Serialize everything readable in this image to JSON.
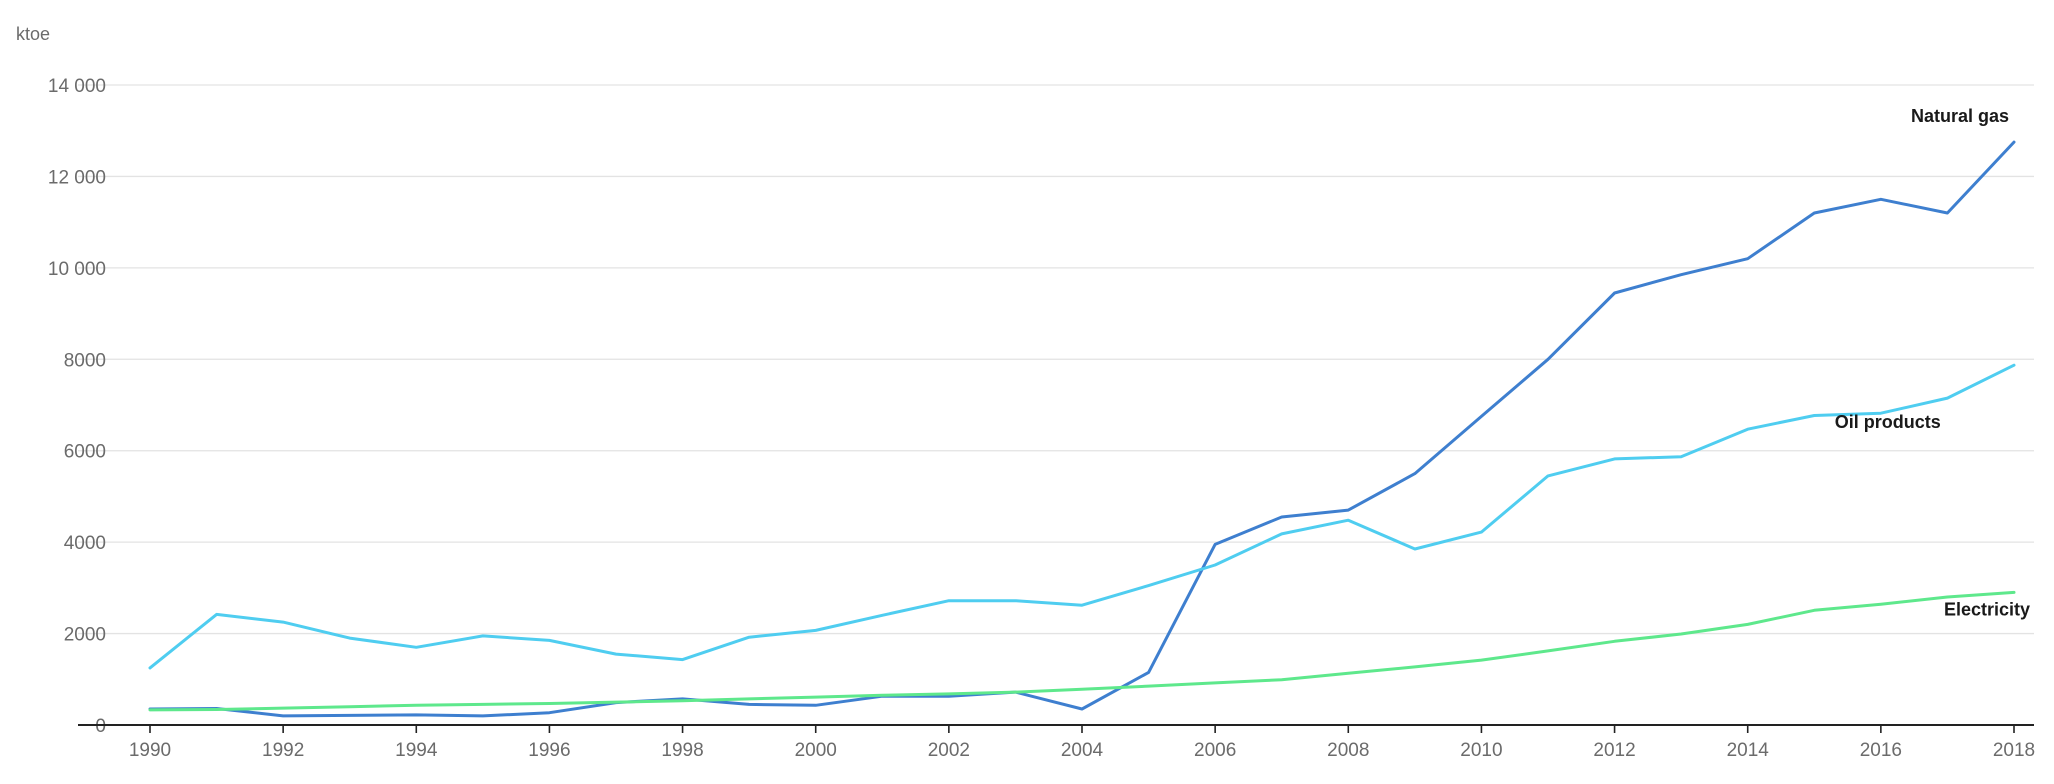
{
  "chart_data": {
    "type": "line",
    "unit_label": "ktoe",
    "x": [
      1990,
      1991,
      1992,
      1993,
      1994,
      1995,
      1996,
      1997,
      1998,
      1999,
      2000,
      2001,
      2002,
      2003,
      2004,
      2005,
      2006,
      2007,
      2008,
      2009,
      2010,
      2011,
      2012,
      2013,
      2014,
      2015,
      2016,
      2017,
      2018
    ],
    "x_ticks": [
      "1990",
      "1992",
      "1994",
      "1996",
      "1998",
      "2000",
      "2002",
      "2004",
      "2006",
      "2008",
      "2010",
      "2012",
      "2014",
      "2016",
      "2018"
    ],
    "y_ticks": [
      {
        "value": 0,
        "label": "0"
      },
      {
        "value": 2000,
        "label": "2000"
      },
      {
        "value": 4000,
        "label": "4000"
      },
      {
        "value": 6000,
        "label": "6000"
      },
      {
        "value": 8000,
        "label": "8000"
      },
      {
        "value": 10000,
        "label": "10 000"
      },
      {
        "value": 12000,
        "label": "12 000"
      },
      {
        "value": 14000,
        "label": "14 000"
      }
    ],
    "ylim": [
      0,
      14000
    ],
    "grid": true,
    "series": [
      {
        "name": "Natural gas",
        "color": "#3e7fcf",
        "values": [
          350,
          360,
          200,
          210,
          220,
          200,
          270,
          490,
          570,
          450,
          430,
          630,
          630,
          720,
          350,
          1150,
          3950,
          4550,
          4700,
          5500,
          6750,
          8000,
          9450,
          9850,
          10200,
          11200,
          11500,
          11200,
          12750
        ]
      },
      {
        "name": "Oil products",
        "color": "#4fcdf0",
        "values": [
          1250,
          2420,
          2250,
          1900,
          1700,
          1950,
          1850,
          1550,
          1430,
          1920,
          2070,
          2400,
          2720,
          2720,
          2620,
          3050,
          3500,
          4180,
          4480,
          3850,
          4220,
          5450,
          5820,
          5870,
          6470,
          6770,
          6820,
          7150,
          7870
        ]
      },
      {
        "name": "Electricity",
        "color": "#5ee88c",
        "values": [
          330,
          340,
          370,
          400,
          430,
          450,
          470,
          500,
          530,
          570,
          610,
          650,
          680,
          720,
          780,
          850,
          920,
          990,
          1130,
          1270,
          1420,
          1620,
          1830,
          1990,
          2200,
          2510,
          2640,
          2800,
          2900
        ]
      }
    ]
  }
}
